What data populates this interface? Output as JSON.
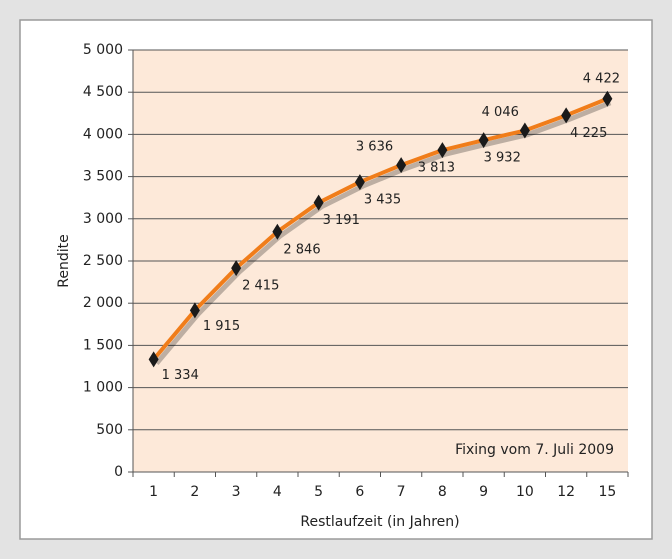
{
  "chart_data": {
    "type": "line",
    "annotation": "Fixing vom 7. Juli 2009",
    "x_label": "Restlaufzeit (in Jahren)",
    "y_label": "Rendite",
    "categories": [
      1,
      2,
      3,
      4,
      5,
      6,
      7,
      8,
      9,
      10,
      12,
      15
    ],
    "values": [
      1334,
      1915,
      2415,
      2846,
      3191,
      3435,
      3636,
      3813,
      3932,
      4046,
      4225,
      4422
    ],
    "value_labels": [
      "1 334",
      "1 915",
      "2 415",
      "2 846",
      "3 191",
      "3 435",
      "3 636",
      "3 813",
      "3 932",
      "4 046",
      "4 225",
      "4 422"
    ],
    "color": "#f07d1a",
    "marker_color": "#1a1a1a",
    "ylim": [
      0,
      5000
    ],
    "yticks": [
      0,
      500,
      {
        "value": 1000,
        "label": "1 000"
      },
      {
        "value": 1500,
        "label": "1 500"
      },
      {
        "value": 2000,
        "label": "2 000"
      },
      {
        "value": 2500,
        "label": "2 500"
      },
      {
        "value": 3000,
        "label": "3 000"
      },
      {
        "value": 3500,
        "label": "3 500"
      },
      {
        "value": 4000,
        "label": "4 000"
      },
      {
        "value": 4500,
        "label": "4 500"
      },
      {
        "value": 5000,
        "label": "5 000"
      }
    ],
    "grid": true
  }
}
